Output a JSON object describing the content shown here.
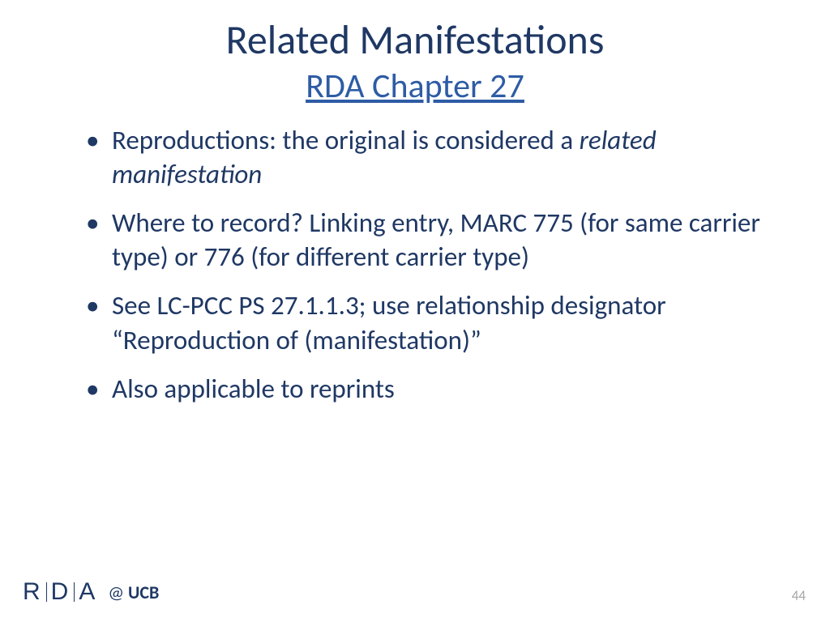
{
  "colors": {
    "text_primary": "#1f3864",
    "link": "#2e5ca5",
    "page_number": "#a6a6a6",
    "background": "#ffffff"
  },
  "typography": {
    "title_fontsize": 50,
    "subtitle_fontsize": 42,
    "body_fontsize": 33,
    "footer_logo_fontsize": 30,
    "footer_text_fontsize": 22,
    "page_number_fontsize": 17,
    "font_family": "Calibri"
  },
  "title": {
    "main": "Related Manifestations",
    "sub": "RDA Chapter 27"
  },
  "bullets": [
    {
      "pre": "Reproductions: the original is considered a ",
      "italic": "related manifestation",
      "post": ""
    },
    {
      "pre": "Where to record? Linking entry, MARC 775 (for same carrier type) or 776 (for different carrier type)",
      "italic": "",
      "post": ""
    },
    {
      "pre": "See LC-PCC PS 27.1.1.3; use relationship designator “Reproduction of (manifestation)”",
      "italic": "",
      "post": ""
    },
    {
      "pre": "Also applicable to reprints",
      "italic": "",
      "post": ""
    }
  ],
  "footer": {
    "logo_letters": [
      "R",
      "D",
      "A"
    ],
    "at": "@",
    "org": "UCB"
  },
  "page_number": "44"
}
